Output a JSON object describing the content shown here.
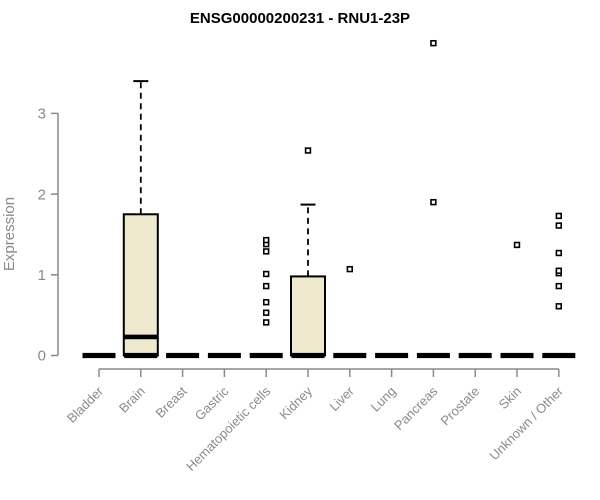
{
  "chart_data": {
    "type": "boxplot",
    "title": "ENSG00000200231 - RNU1-23P",
    "ylabel": "Expression",
    "xlabel": "",
    "yticks": [
      0,
      1,
      2,
      3
    ],
    "ylim": [
      0,
      3.95
    ],
    "grid": false,
    "legend": "none",
    "categories": [
      "Bladder",
      "Brain",
      "Breast",
      "Gastric",
      "Hematopoietic cells",
      "Kidney",
      "Liver",
      "Lung",
      "Pancreas",
      "Prostate",
      "Skin",
      "Unknown / Other"
    ],
    "boxes": [
      {
        "category": "Bladder",
        "q1": 0,
        "median": 0,
        "q3": 0,
        "whisker_low": 0,
        "whisker_high": 0,
        "outliers": []
      },
      {
        "category": "Brain",
        "q1": 0,
        "median": 0.23,
        "q3": 1.75,
        "whisker_low": 0,
        "whisker_high": 3.4,
        "outliers": []
      },
      {
        "category": "Breast",
        "q1": 0,
        "median": 0,
        "q3": 0,
        "whisker_low": 0,
        "whisker_high": 0,
        "outliers": []
      },
      {
        "category": "Gastric",
        "q1": 0,
        "median": 0,
        "q3": 0,
        "whisker_low": 0,
        "whisker_high": 0,
        "outliers": []
      },
      {
        "category": "Hematopoietic cells",
        "q1": 0,
        "median": 0,
        "q3": 0,
        "whisker_low": 0,
        "whisker_high": 0,
        "outliers": [
          0.41,
          0.53,
          0.66,
          0.86,
          1.01,
          1.29,
          1.38,
          1.43
        ]
      },
      {
        "category": "Kidney",
        "q1": 0,
        "median": 0,
        "q3": 0.98,
        "whisker_low": 0,
        "whisker_high": 1.87,
        "outliers": [
          2.54
        ]
      },
      {
        "category": "Liver",
        "q1": 0,
        "median": 0,
        "q3": 0,
        "whisker_low": 0,
        "whisker_high": 0,
        "outliers": [
          1.07
        ]
      },
      {
        "category": "Lung",
        "q1": 0,
        "median": 0,
        "q3": 0,
        "whisker_low": 0,
        "whisker_high": 0,
        "outliers": []
      },
      {
        "category": "Pancreas",
        "q1": 0,
        "median": 0,
        "q3": 0,
        "whisker_low": 0,
        "whisker_high": 0,
        "outliers": [
          1.9,
          3.87
        ]
      },
      {
        "category": "Prostate",
        "q1": 0,
        "median": 0,
        "q3": 0,
        "whisker_low": 0,
        "whisker_high": 0,
        "outliers": []
      },
      {
        "category": "Skin",
        "q1": 0,
        "median": 0,
        "q3": 0,
        "whisker_low": 0,
        "whisker_high": 0,
        "outliers": [
          1.37
        ]
      },
      {
        "category": "Unknown / Other",
        "q1": 0,
        "median": 0,
        "q3": 0,
        "whisker_low": 0,
        "whisker_high": 0,
        "outliers": [
          0.61,
          0.86,
          1.02,
          1.05,
          1.27,
          1.61,
          1.73
        ]
      }
    ],
    "colors": {
      "box_fill": "#EDE8CE",
      "box_stroke": "#000000",
      "median": "#000000",
      "whisker": "#000000",
      "outlier_fill": "#FFFFFF",
      "outlier_stroke": "#000000",
      "axis": "#8A8A8A",
      "tick_text": "#8A8A8A",
      "title_text": "#000000",
      "background": "#FFFFFF"
    }
  }
}
